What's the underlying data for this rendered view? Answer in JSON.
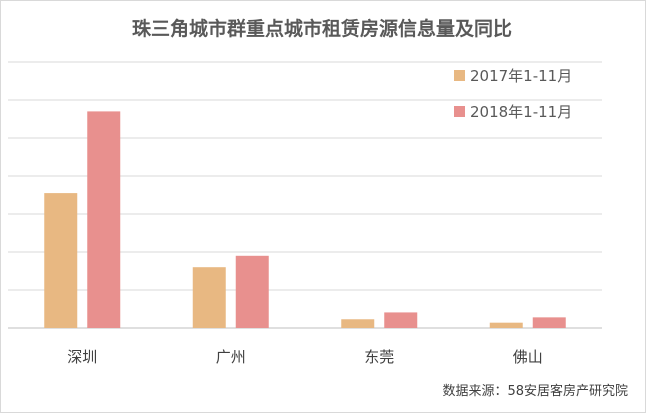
{
  "chart_data": {
    "type": "bar",
    "title": "珠三角城市群重点城市租赁房源信息量及同比",
    "categories": [
      "深圳",
      "广州",
      "东莞",
      "佛山"
    ],
    "series": [
      {
        "name": "2017年1-11月",
        "color": "#E8B882",
        "values": [
          35.5,
          16,
          2.3,
          1.4
        ]
      },
      {
        "name": "2018年1-11月",
        "color": "#E8908E",
        "values": [
          57,
          19,
          4.1,
          2.8
        ]
      }
    ],
    "ylim": [
      0,
      70
    ],
    "grid": true,
    "legend": "top-right",
    "source": "数据来源：58安居客房产研究院"
  }
}
